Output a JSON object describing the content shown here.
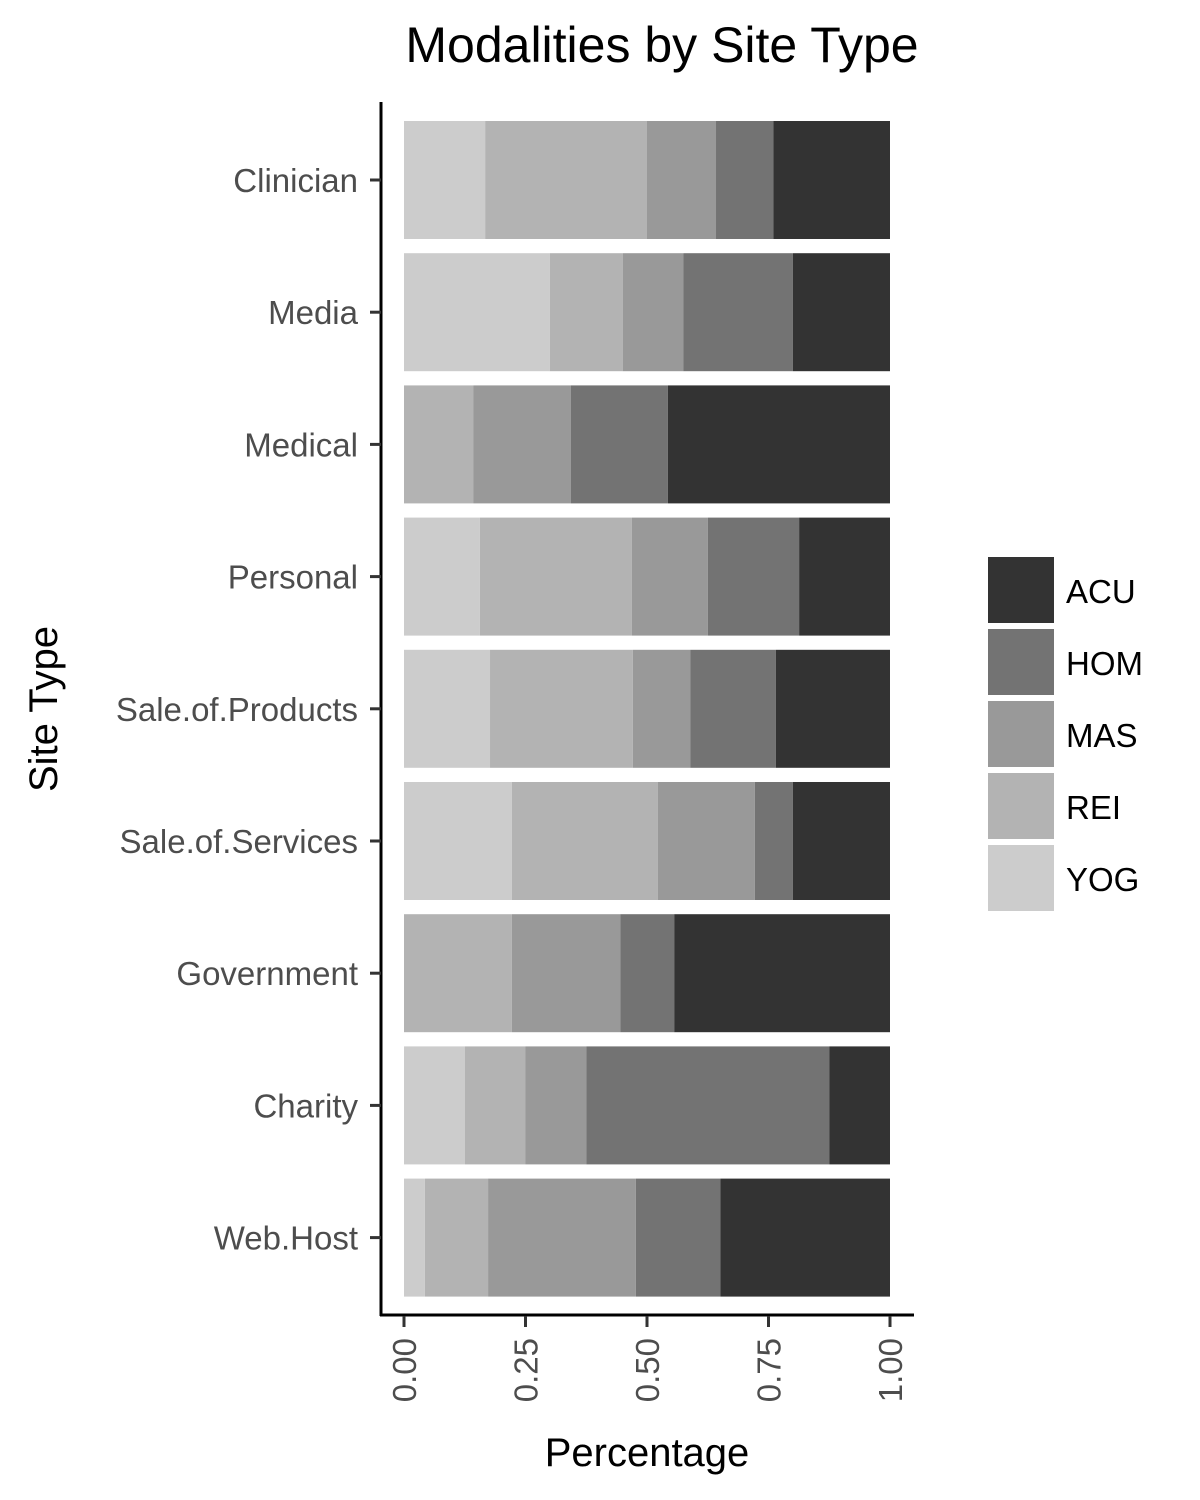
{
  "chart_data": {
    "type": "bar",
    "orientation": "horizontal",
    "stacked": true,
    "title": "Modalities by Site Type",
    "xlabel": "Percentage",
    "ylabel": "Site Type",
    "xlim": [
      0,
      1
    ],
    "x_ticks": [
      "0.00",
      "0.25",
      "0.50",
      "0.75",
      "1.00"
    ],
    "x_tick_values": [
      0,
      0.25,
      0.5,
      0.75,
      1.0
    ],
    "grid": false,
    "legend_position": "right",
    "categories": [
      "Clinician",
      "Media",
      "Medical",
      "Personal",
      "Sale.of.Products",
      "Sale.of.Services",
      "Government",
      "Charity",
      "Web.Host"
    ],
    "stack_order": [
      "YOG",
      "REI",
      "MAS",
      "HOM",
      "ACU"
    ],
    "series": [
      {
        "name": "YOG",
        "color": "#cccccc",
        "values": [
          0.167,
          0.3,
          0.0,
          0.156,
          0.177,
          0.222,
          0.0,
          0.125,
          0.043
        ]
      },
      {
        "name": "REI",
        "color": "#b3b3b3",
        "values": [
          0.333,
          0.15,
          0.143,
          0.313,
          0.294,
          0.3,
          0.222,
          0.125,
          0.13
        ]
      },
      {
        "name": "MAS",
        "color": "#999999",
        "values": [
          0.142,
          0.125,
          0.2,
          0.156,
          0.118,
          0.2,
          0.223,
          0.125,
          0.304
        ]
      },
      {
        "name": "HOM",
        "color": "#737373",
        "values": [
          0.118,
          0.225,
          0.2,
          0.188,
          0.176,
          0.078,
          0.111,
          0.5,
          0.174
        ]
      },
      {
        "name": "ACU",
        "color": "#333333",
        "values": [
          0.24,
          0.2,
          0.457,
          0.187,
          0.235,
          0.2,
          0.444,
          0.125,
          0.349
        ]
      }
    ],
    "legend": [
      "ACU",
      "HOM",
      "MAS",
      "REI",
      "YOG"
    ]
  }
}
